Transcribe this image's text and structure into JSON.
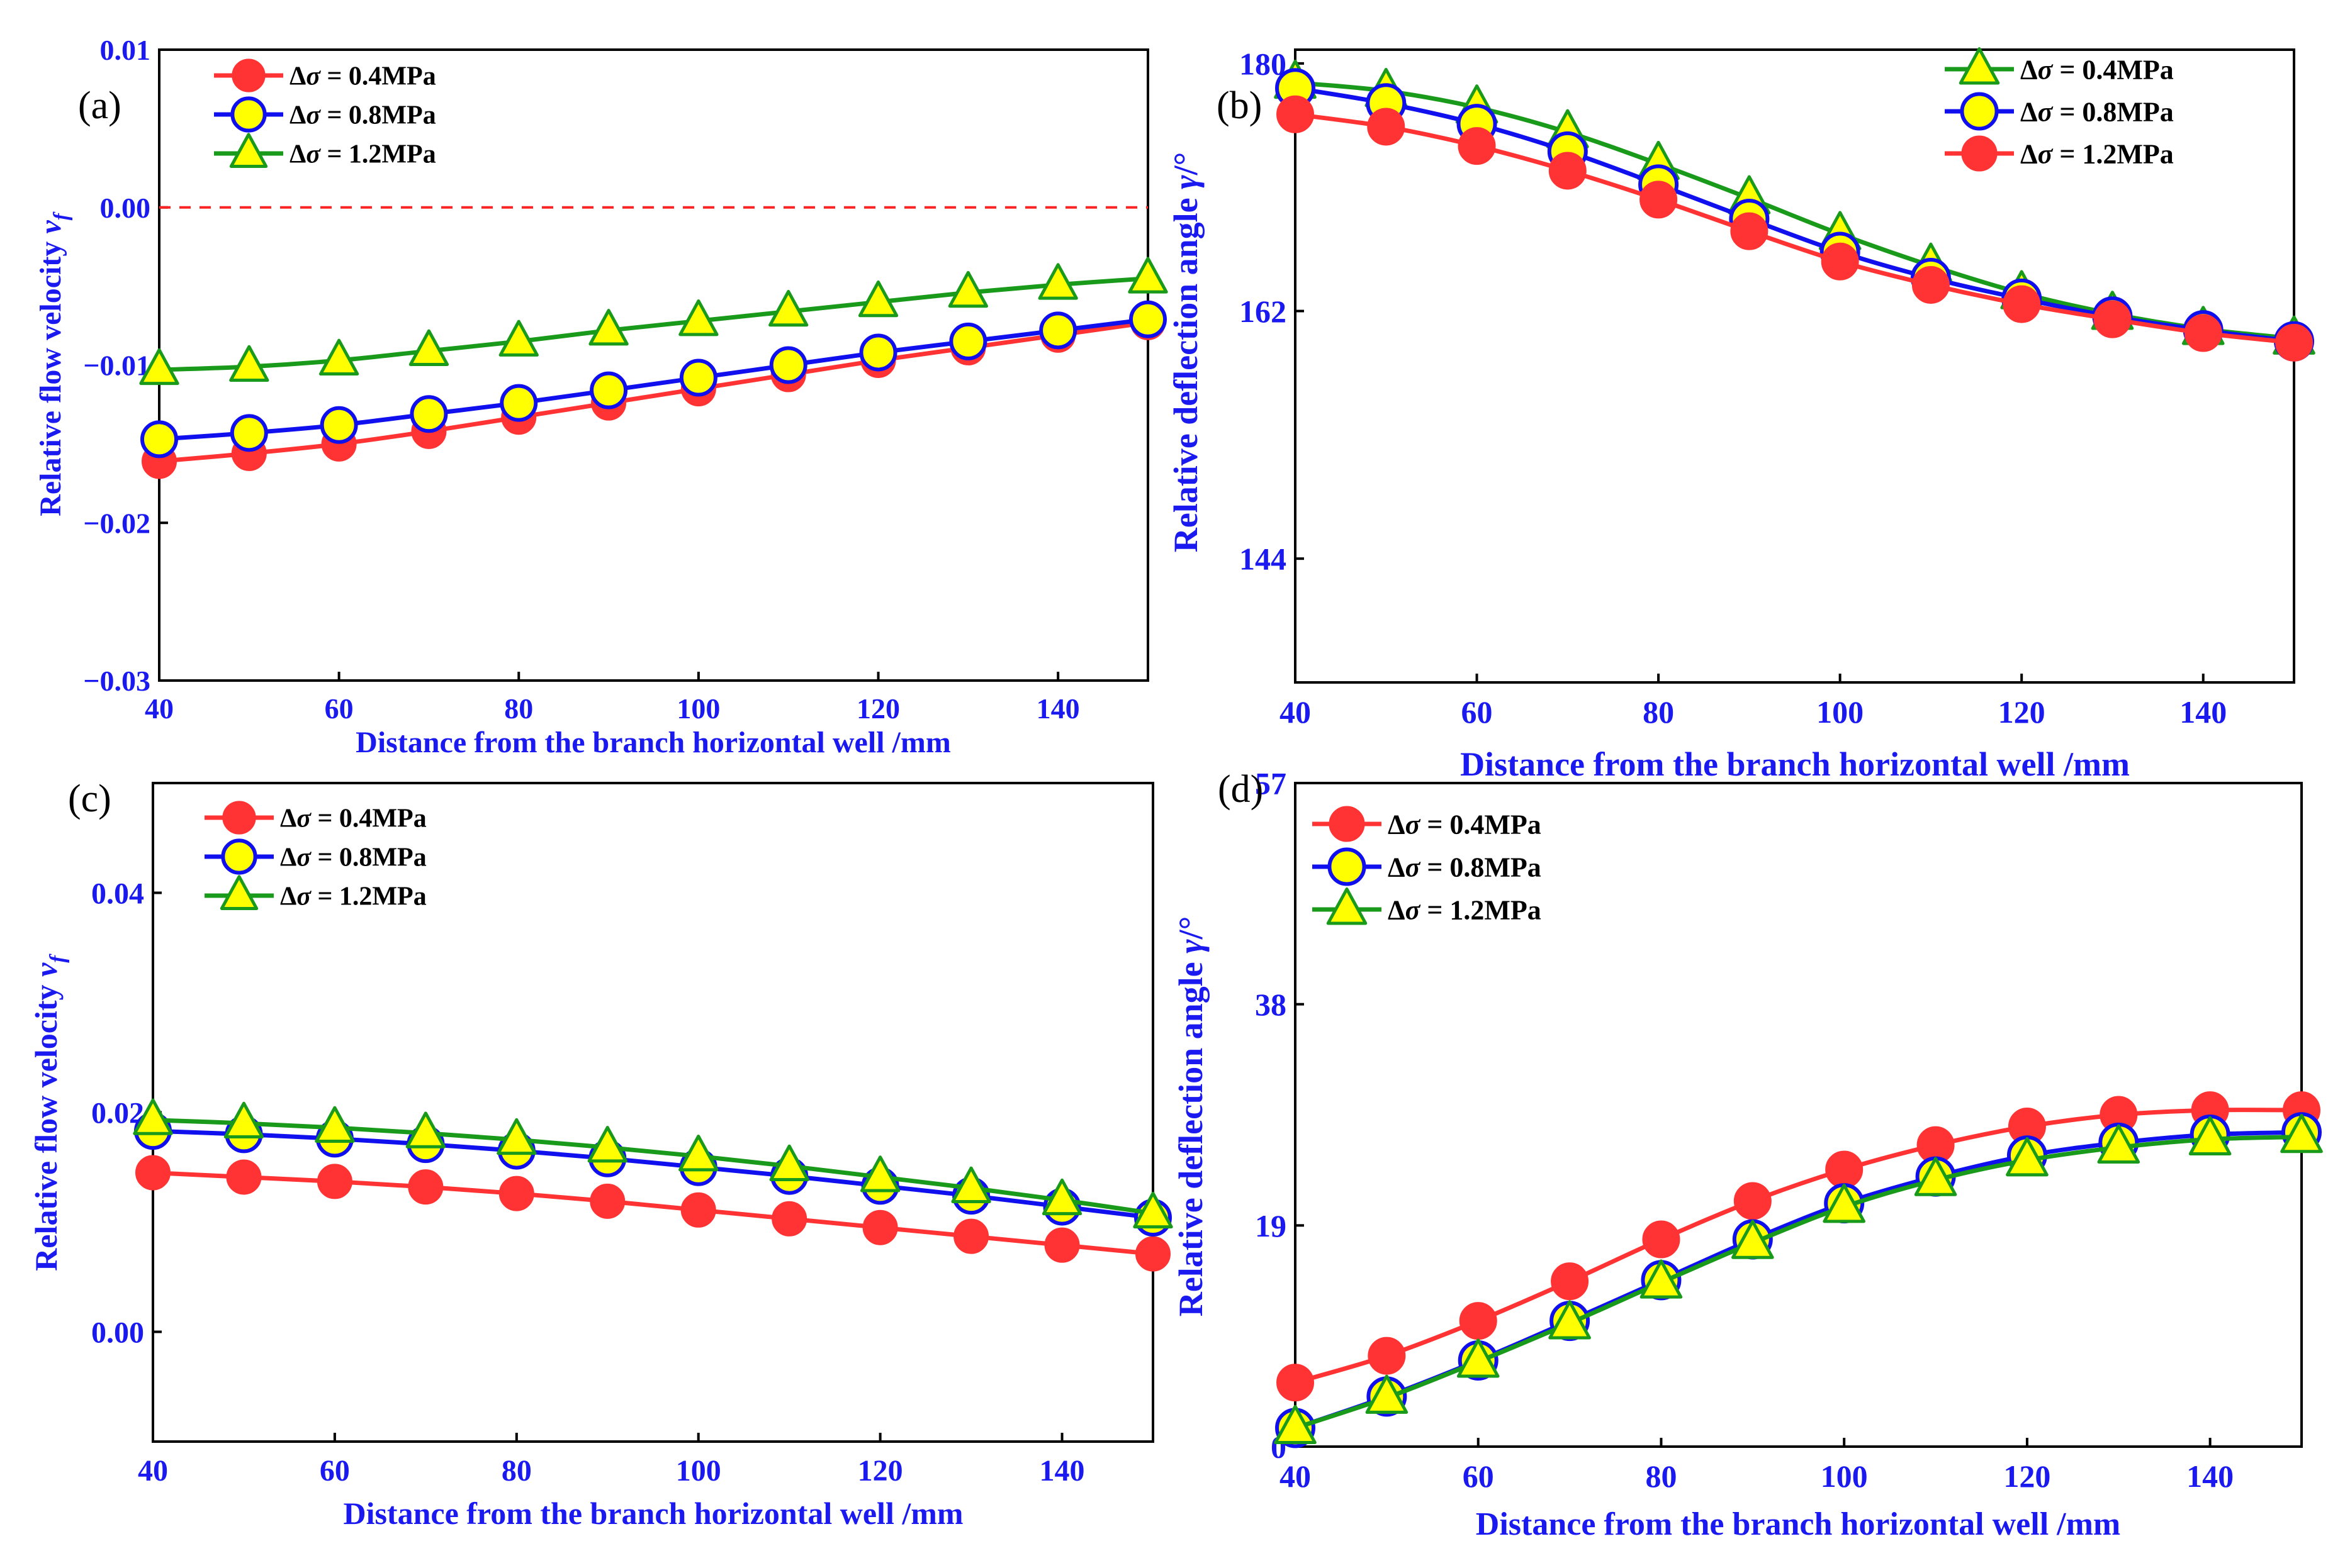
{
  "colors": {
    "axis_text": "#1a1af0",
    "frame": "#000000",
    "marker_fill_hollow": "#ffff00",
    "red": "#ff3333",
    "blue": "#1010ee",
    "green": "#1a9a1a",
    "zero_line": "#ff2222"
  },
  "chart_data": [
    {
      "panel": "(a)",
      "type": "line",
      "xlabel": "Distance from the branch horizontal well /mm",
      "ylabel": "Relative flow velocity",
      "ylabel_symbol": "v",
      "ylabel_subscript": "f",
      "xlim": [
        40,
        150
      ],
      "ylim": [
        -0.03,
        0.01
      ],
      "xticks": [
        40,
        60,
        80,
        100,
        120,
        140
      ],
      "xtick_labels": [
        "40",
        "60",
        "80",
        "100",
        "120",
        "140"
      ],
      "yticks": [
        -0.03,
        -0.02,
        -0.01,
        0.0,
        0.01
      ],
      "ytick_labels": [
        "−0.03",
        "−0.02",
        "−0.01",
        "0.00",
        "0.01"
      ],
      "zero_line": 0.0,
      "legend_position": "top-left",
      "x": [
        40,
        50,
        60,
        70,
        80,
        90,
        100,
        110,
        120,
        130,
        140,
        150
      ],
      "series": [
        {
          "name": "Δσ = 0.4MPa",
          "prefix": "Δ",
          "sigma": "σ",
          "rest": " = 0.4MPa",
          "color_key": "red",
          "marker": "filled-circle",
          "values": [
            -0.0161,
            -0.0156,
            -0.015,
            -0.0142,
            -0.0133,
            -0.0124,
            -0.0115,
            -0.0106,
            -0.0097,
            -0.0089,
            -0.0081,
            -0.0073
          ]
        },
        {
          "name": "Δσ = 0.8MPa",
          "prefix": "Δ",
          "sigma": "σ",
          "rest": " = 0.8MPa",
          "color_key": "blue",
          "marker": "hollow-circle",
          "values": [
            -0.0147,
            -0.0143,
            -0.0138,
            -0.0131,
            -0.0124,
            -0.0116,
            -0.0108,
            -0.01,
            -0.0092,
            -0.0085,
            -0.0078,
            -0.0071
          ]
        },
        {
          "name": "Δσ = 1.2MPa",
          "prefix": "Δ",
          "sigma": "σ",
          "rest": " = 1.2MPa",
          "color_key": "green",
          "marker": "triangle",
          "values": [
            -0.0103,
            -0.0101,
            -0.0097,
            -0.0091,
            -0.0085,
            -0.0078,
            -0.0072,
            -0.0066,
            -0.006,
            -0.0054,
            -0.0049,
            -0.0045
          ]
        }
      ]
    },
    {
      "panel": "(b)",
      "type": "line",
      "xlabel": "Distance from the branch horizontal well /mm",
      "ylabel": "Relative deflection angle",
      "ylabel_symbol": "γ",
      "ylabel_subscript": "/°",
      "xlim": [
        40,
        150
      ],
      "ylim": [
        135,
        181
      ],
      "xticks": [
        40,
        60,
        80,
        100,
        120,
        140
      ],
      "xtick_labels": [
        "40",
        "60",
        "80",
        "100",
        "120",
        "140"
      ],
      "yticks": [
        144,
        162,
        180
      ],
      "ytick_labels": [
        "144",
        "162",
        "180"
      ],
      "legend_position": "top-right",
      "x": [
        40,
        50,
        60,
        70,
        80,
        90,
        100,
        110,
        120,
        130,
        140,
        150
      ],
      "series": [
        {
          "name": "Δσ = 0.4MPa",
          "prefix": "Δ",
          "sigma": "σ",
          "rest": " = 0.4MPa",
          "color_key": "green",
          "marker": "triangle",
          "values": [
            178.6,
            178.0,
            176.8,
            175.0,
            172.7,
            170.2,
            167.6,
            165.3,
            163.3,
            161.8,
            160.7,
            160.0
          ]
        },
        {
          "name": "Δσ = 0.8MPa",
          "prefix": "Δ",
          "sigma": "σ",
          "rest": " = 0.8MPa",
          "color_key": "blue",
          "marker": "hollow-circle",
          "values": [
            178.2,
            177.1,
            175.6,
            173.6,
            171.2,
            168.7,
            166.3,
            164.4,
            162.9,
            161.6,
            160.6,
            159.8
          ]
        },
        {
          "name": "Δσ = 1.2MPa",
          "prefix": "Δ",
          "sigma": "σ",
          "rest": " = 1.2MPa",
          "color_key": "red",
          "marker": "filled-circle",
          "values": [
            176.3,
            175.4,
            174.0,
            172.2,
            170.1,
            167.8,
            165.6,
            163.9,
            162.5,
            161.4,
            160.4,
            159.7
          ]
        }
      ]
    },
    {
      "panel": "(c)",
      "type": "line",
      "xlabel": "Distance from the branch horizontal well /mm",
      "ylabel": "Relative flow velocity",
      "ylabel_symbol": "v",
      "ylabel_subscript": "f",
      "xlim": [
        40,
        150
      ],
      "ylim": [
        -0.01,
        0.05
      ],
      "xticks": [
        40,
        60,
        80,
        100,
        120,
        140
      ],
      "xtick_labels": [
        "40",
        "60",
        "80",
        "100",
        "120",
        "140"
      ],
      "yticks": [
        0.0,
        0.02,
        0.04
      ],
      "ytick_labels": [
        "0.00",
        "0.02",
        "0.04"
      ],
      "legend_position": "top-left",
      "x": [
        40,
        50,
        60,
        70,
        80,
        90,
        100,
        110,
        120,
        130,
        140,
        150
      ],
      "series": [
        {
          "name": "Δσ = 0.4MPa",
          "prefix": "Δ",
          "sigma": "σ",
          "rest": " = 0.4MPa",
          "color_key": "red",
          "marker": "filled-circle",
          "values": [
            0.0145,
            0.0141,
            0.0137,
            0.0132,
            0.0126,
            0.0119,
            0.0111,
            0.0103,
            0.0095,
            0.0087,
            0.0079,
            0.0071
          ]
        },
        {
          "name": "Δσ = 0.8MPa",
          "prefix": "Δ",
          "sigma": "σ",
          "rest": " = 0.8MPa",
          "color_key": "blue",
          "marker": "hollow-circle",
          "values": [
            0.0183,
            0.018,
            0.0176,
            0.0171,
            0.0165,
            0.0158,
            0.015,
            0.0142,
            0.0133,
            0.0124,
            0.0114,
            0.0104
          ]
        },
        {
          "name": "Δσ = 1.2MPa",
          "prefix": "Δ",
          "sigma": "σ",
          "rest": " = 1.2MPa",
          "color_key": "green",
          "marker": "triangle",
          "values": [
            0.0193,
            0.019,
            0.0186,
            0.0181,
            0.0175,
            0.0168,
            0.016,
            0.0151,
            0.0141,
            0.0131,
            0.012,
            0.0108
          ]
        }
      ]
    },
    {
      "panel": "(d)",
      "type": "line",
      "xlabel": "Distance from the branch horizontal well /mm",
      "ylabel": "Relative deflection angle",
      "ylabel_symbol": "γ",
      "ylabel_subscript": "/°",
      "xlim": [
        40,
        150
      ],
      "ylim": [
        0,
        57
      ],
      "xticks": [
        40,
        60,
        80,
        100,
        120,
        140
      ],
      "xtick_labels": [
        "40",
        "60",
        "80",
        "100",
        "120",
        "140"
      ],
      "yticks": [
        0,
        19,
        38,
        57
      ],
      "ytick_labels": [
        "0",
        "19",
        "38",
        "57"
      ],
      "legend_position": "top-left",
      "x": [
        40,
        50,
        60,
        70,
        80,
        90,
        100,
        110,
        120,
        130,
        140,
        150
      ],
      "series": [
        {
          "name": "Δσ = 0.4MPa",
          "prefix": "Δ",
          "sigma": "σ",
          "rest": " = 0.4MPa",
          "color_key": "red",
          "marker": "filled-circle",
          "values": [
            5.5,
            7.8,
            10.8,
            14.2,
            17.8,
            21.1,
            23.8,
            25.9,
            27.5,
            28.5,
            28.9,
            28.9
          ]
        },
        {
          "name": "Δσ = 0.8MPa",
          "prefix": "Δ",
          "sigma": "σ",
          "rest": " = 0.8MPa",
          "color_key": "blue",
          "marker": "hollow-circle",
          "values": [
            1.6,
            4.3,
            7.4,
            10.8,
            14.3,
            17.8,
            20.9,
            23.2,
            25.0,
            26.1,
            26.8,
            27.0
          ]
        },
        {
          "name": "Δσ = 1.2MPa",
          "prefix": "Δ",
          "sigma": "σ",
          "rest": " = 1.2MPa",
          "color_key": "green",
          "marker": "triangle",
          "values": [
            1.6,
            4.2,
            7.3,
            10.6,
            14.1,
            17.5,
            20.6,
            22.9,
            24.6,
            25.7,
            26.4,
            26.6
          ]
        }
      ]
    }
  ]
}
